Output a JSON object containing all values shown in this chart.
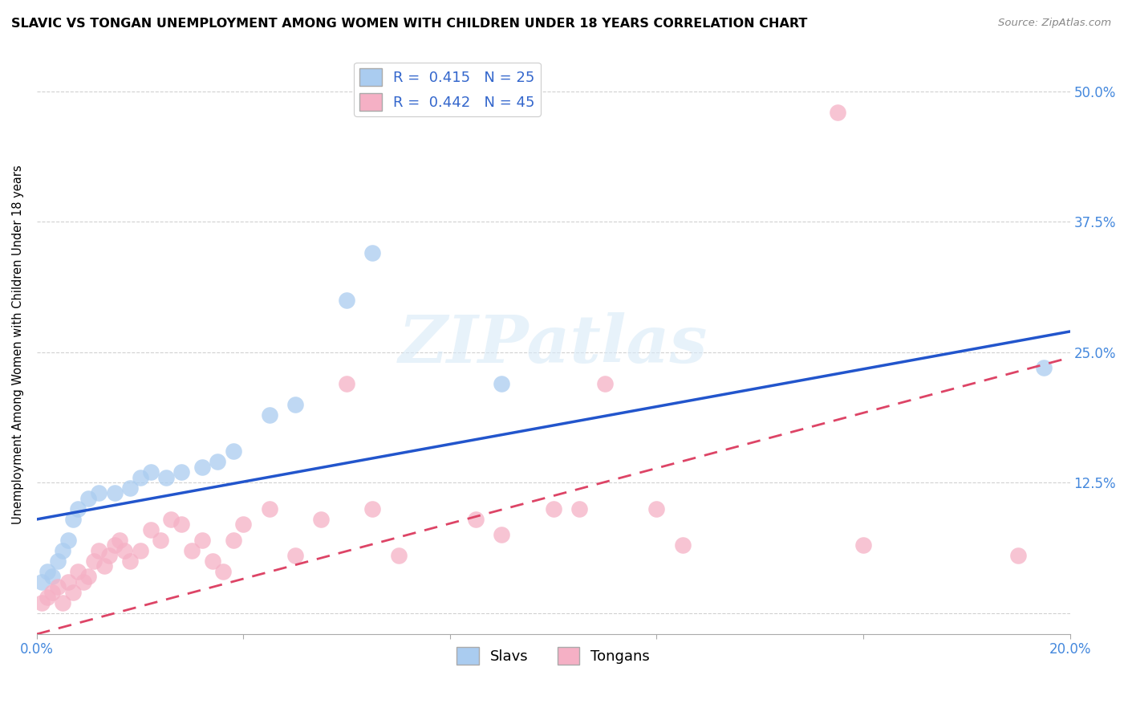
{
  "title": "SLAVIC VS TONGAN UNEMPLOYMENT AMONG WOMEN WITH CHILDREN UNDER 18 YEARS CORRELATION CHART",
  "source": "Source: ZipAtlas.com",
  "ylabel": "Unemployment Among Women with Children Under 18 years",
  "xlim": [
    0.0,
    0.2
  ],
  "ylim": [
    -0.02,
    0.535
  ],
  "xticks": [
    0.0,
    0.04,
    0.08,
    0.12,
    0.16,
    0.2
  ],
  "xticklabels": [
    "0.0%",
    "",
    "",
    "",
    "",
    "20.0%"
  ],
  "yticks": [
    0.0,
    0.125,
    0.25,
    0.375,
    0.5
  ],
  "yticklabels_right": [
    "",
    "12.5%",
    "25.0%",
    "37.5%",
    "50.0%"
  ],
  "slavs_R": 0.415,
  "slavs_N": 25,
  "tongans_R": 0.442,
  "tongans_N": 45,
  "slavs_color": "#aaccf0",
  "tongans_color": "#f5b0c5",
  "slavs_line_color": "#2255cc",
  "tongans_line_color": "#dd4466",
  "watermark": "ZIPatlas",
  "slavs_x": [
    0.001,
    0.002,
    0.003,
    0.004,
    0.005,
    0.006,
    0.007,
    0.008,
    0.01,
    0.012,
    0.015,
    0.018,
    0.02,
    0.022,
    0.025,
    0.028,
    0.032,
    0.035,
    0.038,
    0.045,
    0.05,
    0.06,
    0.065,
    0.09,
    0.195
  ],
  "slavs_y": [
    0.03,
    0.04,
    0.035,
    0.05,
    0.06,
    0.07,
    0.09,
    0.1,
    0.11,
    0.115,
    0.115,
    0.12,
    0.13,
    0.135,
    0.13,
    0.135,
    0.14,
    0.145,
    0.155,
    0.19,
    0.2,
    0.3,
    0.345,
    0.22,
    0.235
  ],
  "tongans_x": [
    0.001,
    0.002,
    0.003,
    0.004,
    0.005,
    0.006,
    0.007,
    0.008,
    0.009,
    0.01,
    0.011,
    0.012,
    0.013,
    0.014,
    0.015,
    0.016,
    0.017,
    0.018,
    0.02,
    0.022,
    0.024,
    0.026,
    0.028,
    0.03,
    0.032,
    0.034,
    0.036,
    0.038,
    0.04,
    0.045,
    0.05,
    0.055,
    0.06,
    0.065,
    0.07,
    0.085,
    0.09,
    0.1,
    0.105,
    0.11,
    0.12,
    0.125,
    0.155,
    0.16,
    0.19
  ],
  "tongans_y": [
    0.01,
    0.015,
    0.02,
    0.025,
    0.01,
    0.03,
    0.02,
    0.04,
    0.03,
    0.035,
    0.05,
    0.06,
    0.045,
    0.055,
    0.065,
    0.07,
    0.06,
    0.05,
    0.06,
    0.08,
    0.07,
    0.09,
    0.085,
    0.06,
    0.07,
    0.05,
    0.04,
    0.07,
    0.085,
    0.1,
    0.055,
    0.09,
    0.22,
    0.1,
    0.055,
    0.09,
    0.075,
    0.1,
    0.1,
    0.22,
    0.1,
    0.065,
    0.48,
    0.065,
    0.055
  ],
  "slavs_line_x0": 0.0,
  "slavs_line_y0": 0.09,
  "slavs_line_x1": 0.2,
  "slavs_line_y1": 0.27,
  "tongans_line_x0": 0.0,
  "tongans_line_y0": -0.02,
  "tongans_line_x1": 0.2,
  "tongans_line_y1": 0.245
}
